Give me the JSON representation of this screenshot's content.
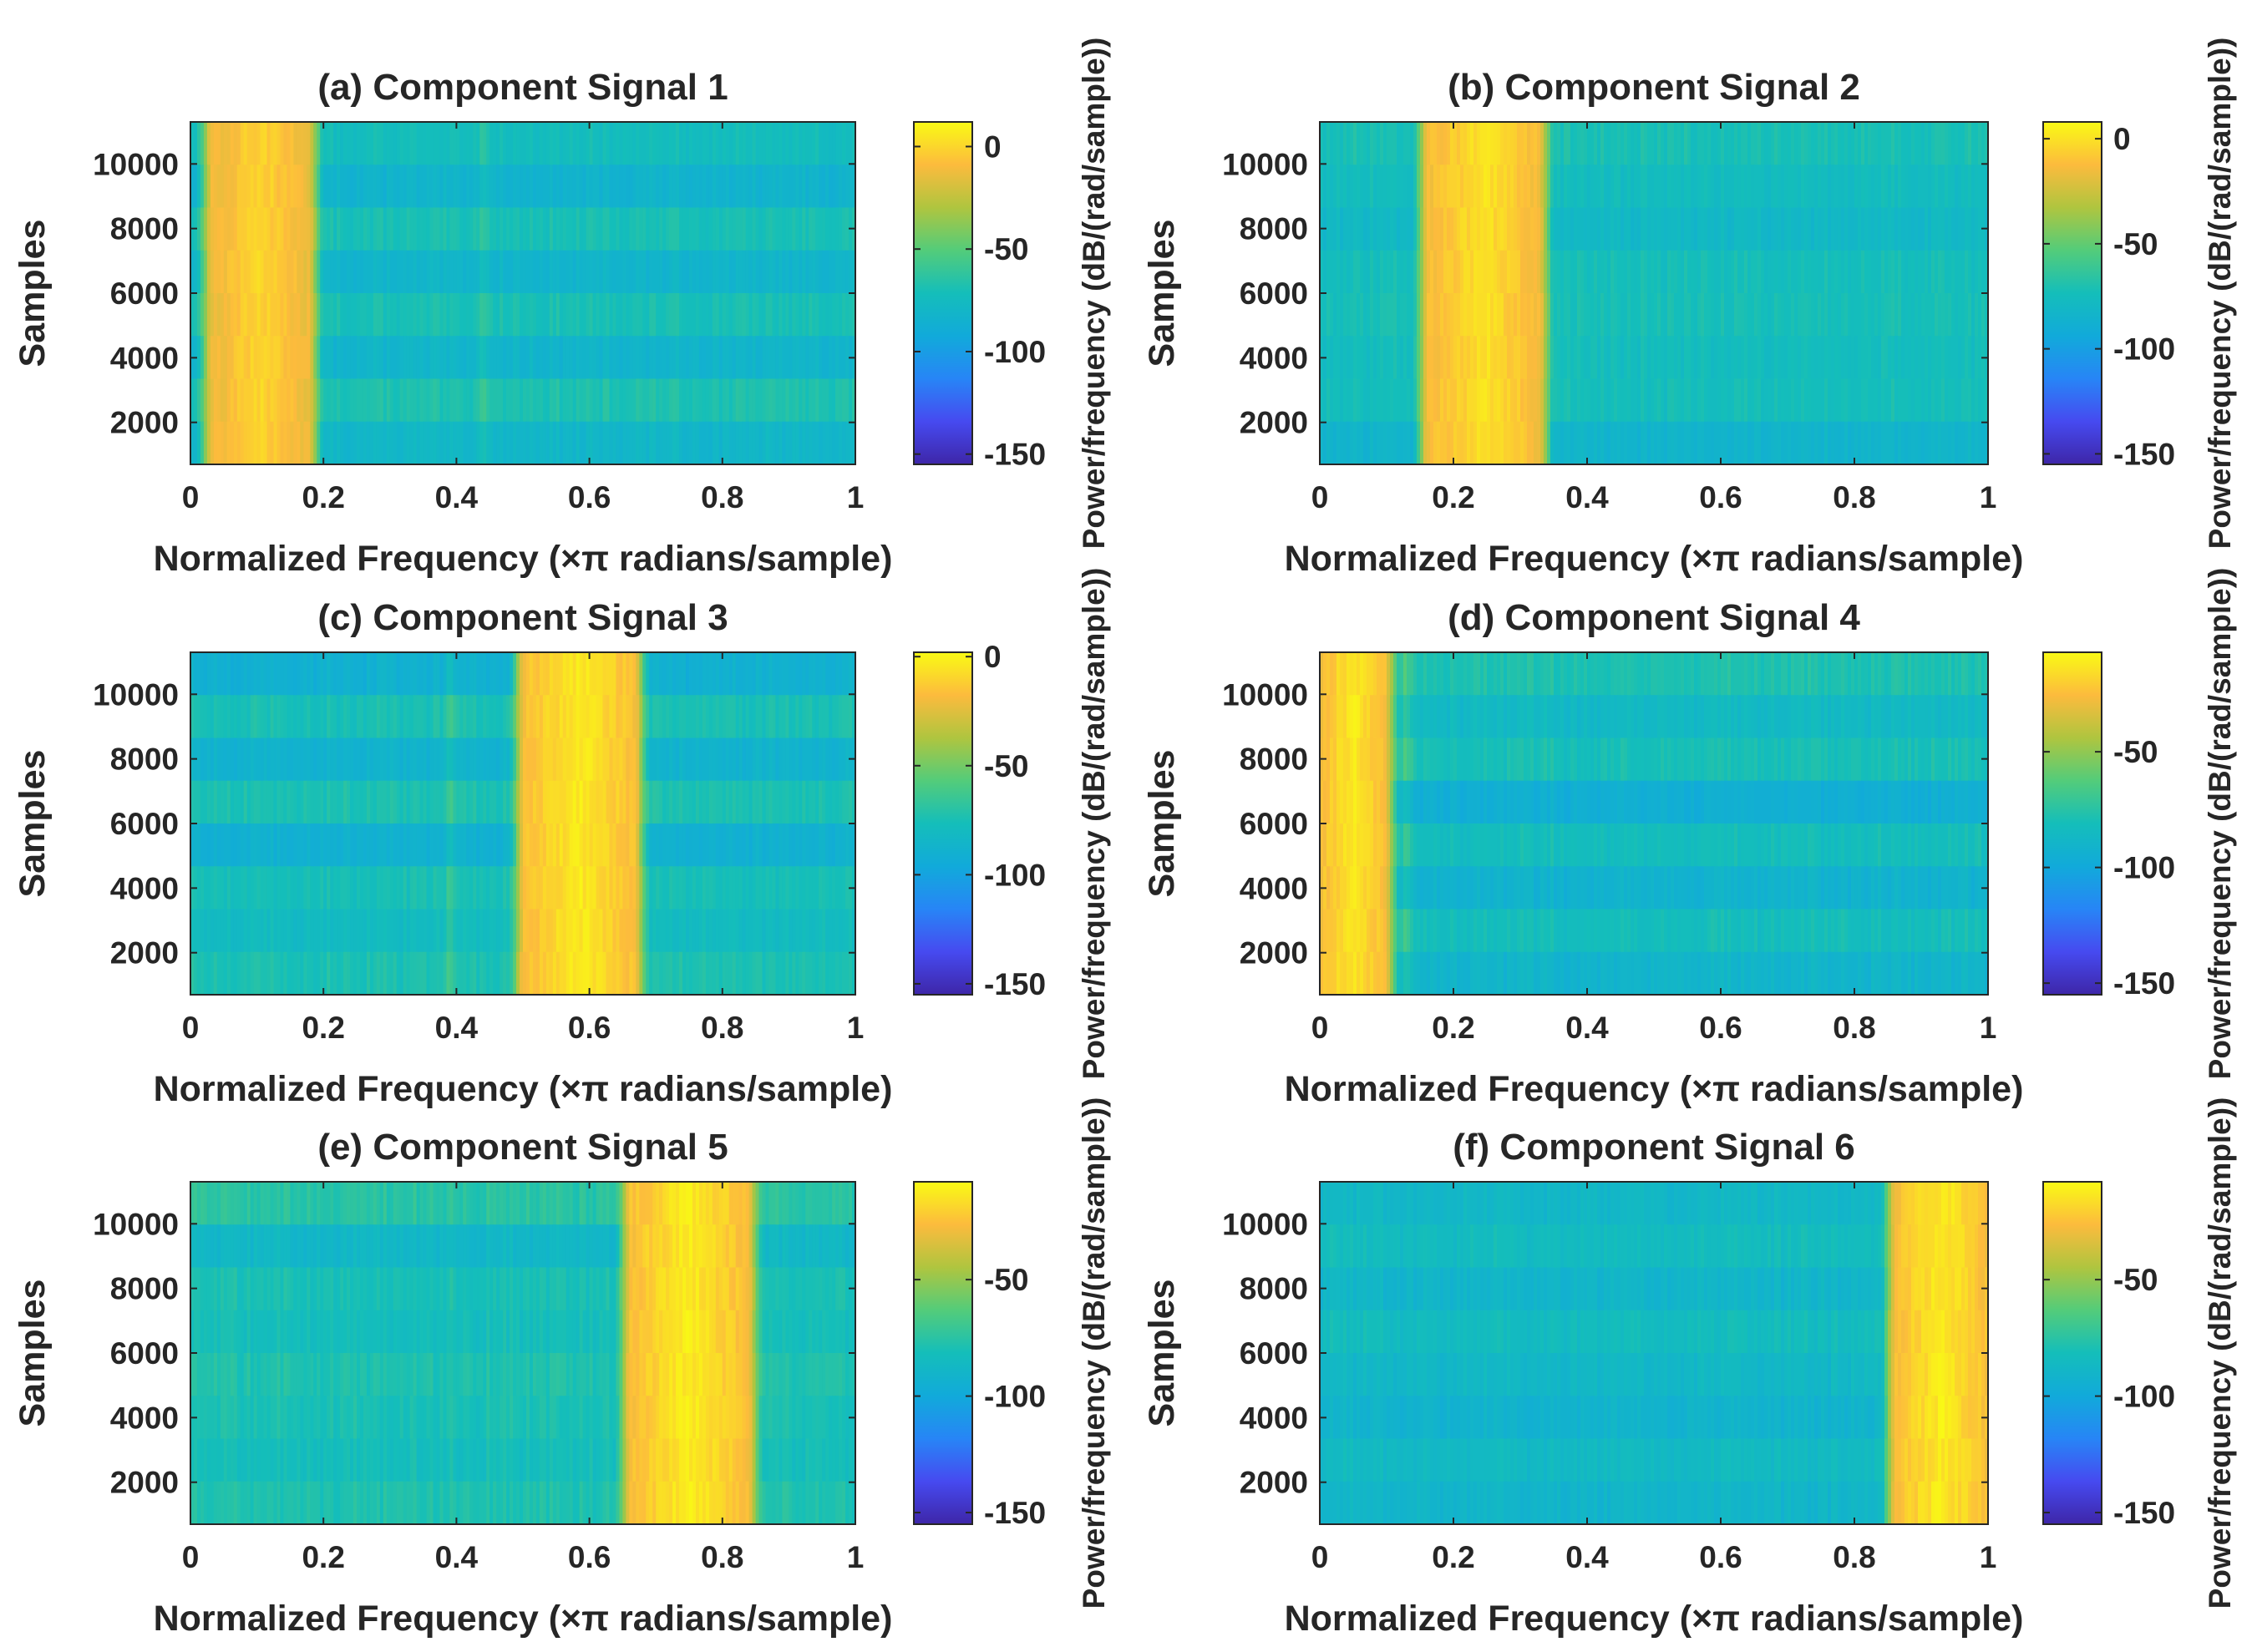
{
  "figure": {
    "domain": "spectrogram grid"
  },
  "chart_data": [
    {
      "type": "heatmap",
      "title": "(a) Component Signal 1",
      "xlabel": "Normalized Frequency (×π radians/sample)",
      "ylabel": "Samples",
      "colorbar_label": "Power/frequency (dB/(rad/sample))",
      "xlim": [
        0,
        1
      ],
      "ylim": [
        700,
        11300
      ],
      "xticks": [
        0,
        0.2,
        0.4,
        0.6,
        0.8,
        1
      ],
      "xtick_labels": [
        "0",
        "0.2",
        "0.4",
        "0.6",
        "0.8",
        "1"
      ],
      "yticks": [
        2000,
        4000,
        6000,
        8000,
        10000
      ],
      "ytick_labels": [
        "2000",
        "4000",
        "6000",
        "8000",
        "10000"
      ],
      "clim": [
        -155,
        12
      ],
      "cticks": [
        0,
        -50,
        -100,
        -150
      ],
      "ctick_labels": [
        "0",
        "-50",
        "-100",
        "-150"
      ],
      "colormap": "parula",
      "band_low": 0.03,
      "band_high": 0.18,
      "peak_db": 0,
      "background_db": -75,
      "rows_db": [
        -73,
        -83,
        -70,
        -82,
        -70,
        -82,
        -68,
        -80
      ],
      "secondary_lines": [
        0.44
      ]
    },
    {
      "type": "heatmap",
      "title": "(b) Component Signal 2",
      "xlabel": "Normalized Frequency (×π radians/sample)",
      "ylabel": "Samples",
      "colorbar_label": "Power/frequency (dB/(rad/sample))",
      "xlim": [
        0,
        1
      ],
      "ylim": [
        700,
        11300
      ],
      "xticks": [
        0,
        0.2,
        0.4,
        0.6,
        0.8,
        1
      ],
      "xtick_labels": [
        "0",
        "0.2",
        "0.4",
        "0.6",
        "0.8",
        "1"
      ],
      "yticks": [
        2000,
        4000,
        6000,
        8000,
        10000
      ],
      "ytick_labels": [
        "2000",
        "4000",
        "6000",
        "8000",
        "10000"
      ],
      "clim": [
        -155,
        8
      ],
      "cticks": [
        0,
        -50,
        -100,
        -150
      ],
      "ctick_labels": [
        "0",
        "-50",
        "-100",
        "-150"
      ],
      "colormap": "parula",
      "band_low": 0.16,
      "band_high": 0.33,
      "peak_db": 0,
      "background_db": -75,
      "rows_db": [
        -72,
        -76,
        -80,
        -74,
        -73,
        -75,
        -74,
        -84
      ],
      "secondary_lines": []
    },
    {
      "type": "heatmap",
      "title": "(c) Component Signal 3",
      "xlabel": "Normalized Frequency (×π radians/sample)",
      "ylabel": "Samples",
      "colorbar_label": "Power/frequency (dB/(rad/sample))",
      "xlim": [
        0,
        1
      ],
      "ylim": [
        700,
        11300
      ],
      "xticks": [
        0,
        0.2,
        0.4,
        0.6,
        0.8,
        1
      ],
      "xtick_labels": [
        "0",
        "0.2",
        "0.4",
        "0.6",
        "0.8",
        "1"
      ],
      "yticks": [
        2000,
        4000,
        6000,
        8000,
        10000
      ],
      "ytick_labels": [
        "2000",
        "4000",
        "6000",
        "8000",
        "10000"
      ],
      "clim": [
        -155,
        2
      ],
      "cticks": [
        0,
        -50,
        -100,
        -150
      ],
      "ctick_labels": [
        "0",
        "-50",
        "-100",
        "-150"
      ],
      "colormap": "parula",
      "band_low": 0.5,
      "band_high": 0.67,
      "peak_db": -3,
      "background_db": -78,
      "rows_db": [
        -90,
        -75,
        -88,
        -74,
        -90,
        -76,
        -80,
        -74
      ],
      "secondary_lines": [
        0.39
      ]
    },
    {
      "type": "heatmap",
      "title": "(d) Component Signal 4",
      "xlabel": "Normalized Frequency (×π radians/sample)",
      "ylabel": "Samples",
      "colorbar_label": "Power/frequency (dB/(rad/sample))",
      "xlim": [
        0,
        1
      ],
      "ylim": [
        700,
        11300
      ],
      "xticks": [
        0,
        0.2,
        0.4,
        0.6,
        0.8,
        1
      ],
      "xtick_labels": [
        "0",
        "0.2",
        "0.4",
        "0.6",
        "0.8",
        "1"
      ],
      "yticks": [
        2000,
        4000,
        6000,
        8000,
        10000
      ],
      "ytick_labels": [
        "2000",
        "4000",
        "6000",
        "8000",
        "10000"
      ],
      "clim": [
        -155,
        -7
      ],
      "cticks": [
        -50,
        -100,
        -150
      ],
      "ctick_labels": [
        "-50",
        "-100",
        "-150"
      ],
      "colormap": "parula",
      "band_low": 0,
      "band_high": 0.1,
      "peak_db": -12,
      "background_db": -85,
      "rows_db": [
        -78,
        -86,
        -80,
        -95,
        -82,
        -92,
        -82,
        -90
      ],
      "secondary_lines": [
        0.13
      ]
    },
    {
      "type": "heatmap",
      "title": "(e) Component Signal 5",
      "xlabel": "Normalized Frequency (×π radians/sample)",
      "ylabel": "Samples",
      "colorbar_label": "Power/frequency (dB/(rad/sample))",
      "xlim": [
        0,
        1
      ],
      "ylim": [
        700,
        11300
      ],
      "xticks": [
        0,
        0.2,
        0.4,
        0.6,
        0.8,
        1
      ],
      "xtick_labels": [
        "0",
        "0.2",
        "0.4",
        "0.6",
        "0.8",
        "1"
      ],
      "yticks": [
        2000,
        4000,
        6000,
        8000,
        10000
      ],
      "ytick_labels": [
        "2000",
        "4000",
        "6000",
        "8000",
        "10000"
      ],
      "clim": [
        -155,
        -8
      ],
      "cticks": [
        -50,
        -100,
        -150
      ],
      "ctick_labels": [
        "-50",
        "-100",
        "-150"
      ],
      "colormap": "parula",
      "band_low": 0.66,
      "band_high": 0.84,
      "peak_db": -12,
      "background_db": -82,
      "rows_db": [
        -75,
        -88,
        -80,
        -82,
        -78,
        -80,
        -82,
        -78
      ],
      "secondary_lines": []
    },
    {
      "type": "heatmap",
      "title": "(f) Component Signal 6",
      "xlabel": "Normalized Frequency (×π radians/sample)",
      "ylabel": "Samples",
      "colorbar_label": "Power/frequency (dB/(rad/sample))",
      "xlim": [
        0,
        1
      ],
      "ylim": [
        700,
        11300
      ],
      "xticks": [
        0,
        0.2,
        0.4,
        0.6,
        0.8,
        1
      ],
      "xtick_labels": [
        "0",
        "0.2",
        "0.4",
        "0.6",
        "0.8",
        "1"
      ],
      "yticks": [
        2000,
        4000,
        6000,
        8000,
        10000
      ],
      "ytick_labels": [
        "2000",
        "4000",
        "6000",
        "8000",
        "10000"
      ],
      "clim": [
        -155,
        -8
      ],
      "cticks": [
        -50,
        -100,
        -150
      ],
      "ctick_labels": [
        "-50",
        "-100",
        "-150"
      ],
      "colormap": "parula",
      "band_low": 0.86,
      "band_high": 1,
      "peak_db": -12,
      "background_db": -88,
      "rows_db": [
        -88,
        -84,
        -90,
        -84,
        -88,
        -92,
        -86,
        -90
      ],
      "secondary_lines": []
    }
  ]
}
